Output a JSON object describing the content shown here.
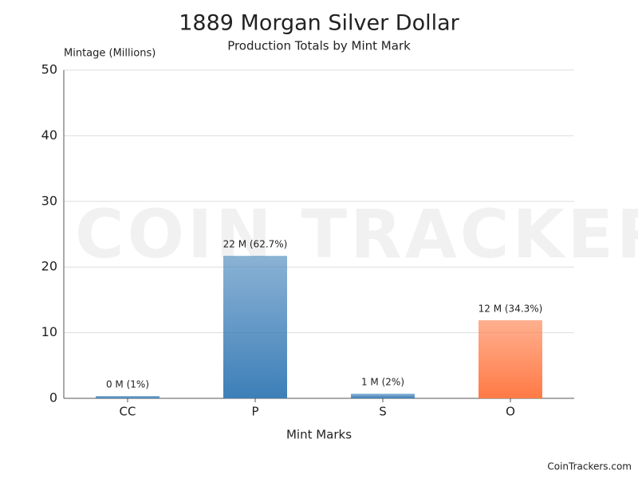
{
  "chart_data": {
    "type": "bar",
    "title": "1889 Morgan Silver Dollar",
    "subtitle": "Production Totals by Mint Mark",
    "y_label": "Mintage (Millions)",
    "x_label": "Mint Marks",
    "categories": [
      "CC",
      "P",
      "S",
      "O"
    ],
    "values": [
      0.35,
      21.7,
      0.7,
      11.9
    ],
    "value_labels": [
      "0 M (1%)",
      "22 M (62.7%)",
      "1 M (2%)",
      "12 M (34.3%)"
    ],
    "colors": [
      "#3d7fb8",
      "#3d7fb8",
      "#3d7fb8",
      "#ff7a45"
    ],
    "ylim": [
      0,
      50
    ],
    "yticks": [
      0,
      10,
      20,
      30,
      40,
      50
    ],
    "grid": true,
    "watermark": "COIN TRACKERS",
    "footer": "CoinTrackers.com"
  }
}
